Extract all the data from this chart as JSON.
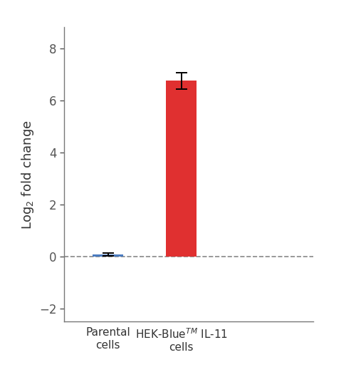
{
  "categories": [
    "Parental\ncells",
    "HEK-Blue$^{TM}$ IL-11\ncells"
  ],
  "values": [
    0.07,
    6.75
  ],
  "errors": [
    0.05,
    0.32
  ],
  "bar_colors": [
    "#4a7bbf",
    "#e03030"
  ],
  "bar_width": 0.42,
  "ylim": [
    -2.5,
    8.8
  ],
  "yticks": [
    -2,
    0,
    2,
    4,
    6,
    8
  ],
  "ylabel": "Log$_2$ fold change",
  "ylabel_fontsize": 13,
  "tick_fontsize": 12,
  "xlabel_fontsize": 11,
  "dashed_line_y": 0,
  "background_color": "#ffffff",
  "spine_color": "#777777",
  "error_capsize": 6,
  "error_linewidth": 1.4,
  "xlim": [
    -0.6,
    2.8
  ]
}
